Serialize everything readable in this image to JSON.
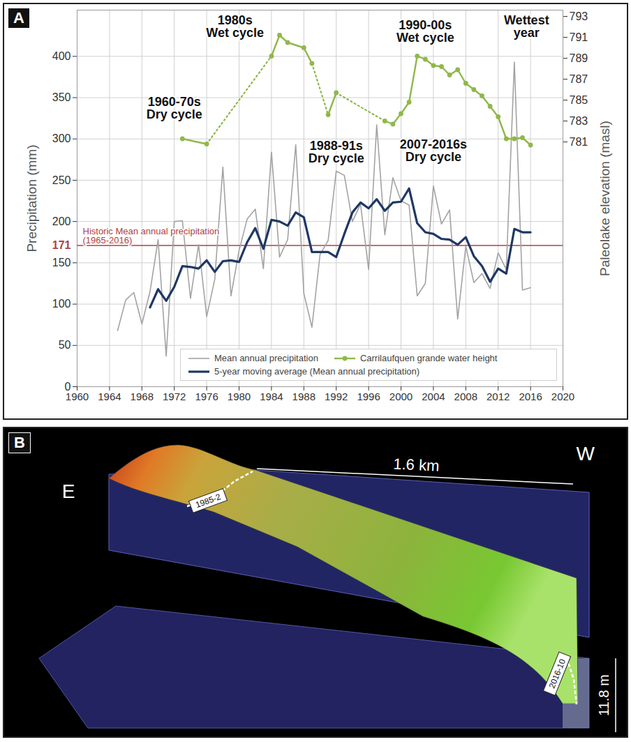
{
  "chart_data": {
    "type": "line",
    "panel": "A",
    "ylabel": "Precipitation (mm)",
    "y2label": "Paleolake elevation (masl)",
    "x": [
      1965,
      1966,
      1967,
      1968,
      1969,
      1970,
      1971,
      1972,
      1973,
      1974,
      1975,
      1976,
      1977,
      1978,
      1979,
      1980,
      1981,
      1982,
      1983,
      1984,
      1985,
      1986,
      1987,
      1988,
      1989,
      1990,
      1991,
      1992,
      1993,
      1994,
      1995,
      1996,
      1997,
      1998,
      1999,
      2000,
      2001,
      2002,
      2003,
      2004,
      2005,
      2006,
      2007,
      2008,
      2009,
      2010,
      2011,
      2012,
      2013,
      2014,
      2015,
      2016
    ],
    "xlim": [
      1960,
      2020
    ],
    "xticks": [
      1960,
      1964,
      1968,
      1972,
      1976,
      1980,
      1984,
      1988,
      1992,
      1996,
      2000,
      2004,
      2008,
      2012,
      2016,
      2020
    ],
    "ylim": [
      0,
      456
    ],
    "yticks": [
      0,
      50,
      100,
      150,
      200,
      250,
      300,
      350,
      400
    ],
    "y2lim": [
      757.6,
      793.6
    ],
    "y2ticks": [
      781,
      783,
      785,
      787,
      789,
      791,
      793
    ],
    "grid": true,
    "legend": "bottom right",
    "reference_line": {
      "value": 171,
      "label": "Historic Mean annual precipitation\n(1965-2016)",
      "color": "#b0413e"
    },
    "annotations": [
      {
        "text": "1960-70s\nDry cycle",
        "x": 1972,
        "y": 337
      },
      {
        "text": "1980s\nWet cycle",
        "x": 1979.5,
        "y": 436
      },
      {
        "text": "1988-91s\nDry cycle",
        "x": 1992,
        "y": 284
      },
      {
        "text": "1990-00s\nWet cycle",
        "x": 2003,
        "y": 430
      },
      {
        "text": "2007-2016s\nDry cycle",
        "x": 2004,
        "y": 286
      },
      {
        "text": "Wettest\nyear",
        "x": 2015.5,
        "y": 436
      }
    ],
    "series": [
      {
        "name": "Mean annual precipitation",
        "color": "#a3a3a3",
        "line_style": "solid",
        "values": [
          68,
          105,
          114,
          76,
          115,
          178,
          37,
          200,
          201,
          107,
          172,
          85,
          130,
          266,
          110,
          165,
          203,
          215,
          143,
          284,
          157,
          178,
          293,
          113,
          72,
          160,
          177,
          261,
          256,
          200,
          221,
          142,
          317,
          184,
          253,
          225,
          220,
          110,
          125,
          243,
          197,
          214,
          82,
          170,
          126,
          137,
          119,
          162,
          142,
          393,
          117,
          120
        ]
      },
      {
        "name": "Carrilaufquen grande water height",
        "color": "#8fb84a",
        "axis": "y2",
        "marker": "circle",
        "line_style": "solid",
        "x": [
          1973,
          1976,
          1980,
          1984,
          1985,
          1986,
          1988,
          1989,
          1990,
          1991,
          1992,
          1995,
          1998,
          1999,
          2000,
          2001,
          2002,
          2003,
          2004,
          2005,
          2006,
          2007,
          2008,
          2009,
          2010,
          2011,
          2012,
          2013,
          2014,
          2015,
          2016
        ],
        "values": [
          781.3,
          780.8,
          null,
          789.2,
          791.2,
          790.5,
          790.0,
          788.5,
          null,
          783.6,
          785.7,
          null,
          783.0,
          782.7,
          783.7,
          784.8,
          789.2,
          788.9,
          788.3,
          788.2,
          787.4,
          787.9,
          786.6,
          786.0,
          785.4,
          784.4,
          783.4,
          781.3,
          781.3,
          781.4,
          780.7
        ]
      },
      {
        "name": "5-year moving average (Mean annual precipitation)",
        "color": "#1f3864",
        "line_style": "solid",
        "values": [
          null,
          null,
          null,
          null,
          96,
          118,
          104,
          121,
          146,
          145,
          143,
          153,
          139,
          152,
          153,
          151,
          175,
          192,
          167,
          202,
          200,
          195,
          211,
          205,
          163,
          163,
          163,
          157,
          185,
          211,
          223,
          216,
          227,
          213,
          223,
          224,
          240,
          198,
          187,
          185,
          179,
          178,
          172,
          181,
          158,
          146,
          127,
          143,
          137,
          191,
          187,
          187
        ]
      },
      {
        "color": "#8fb84a",
        "axis": "y2",
        "line_style": "dotted",
        "x": [
          1976,
          1984,
          1986,
          1989,
          1991,
          1991,
          1992,
          1998
        ],
        "values": [
          780.8,
          789.2,
          null,
          788.5,
          783.6,
          null,
          785.7,
          783.0
        ]
      }
    ]
  },
  "diagram": {
    "panel": "B",
    "labels": {
      "east": "E",
      "west": "W",
      "length": "1.6 km",
      "height": "11.8 m",
      "shoreline_1985": "1985-2",
      "shoreline_2016": "2016-10"
    }
  }
}
